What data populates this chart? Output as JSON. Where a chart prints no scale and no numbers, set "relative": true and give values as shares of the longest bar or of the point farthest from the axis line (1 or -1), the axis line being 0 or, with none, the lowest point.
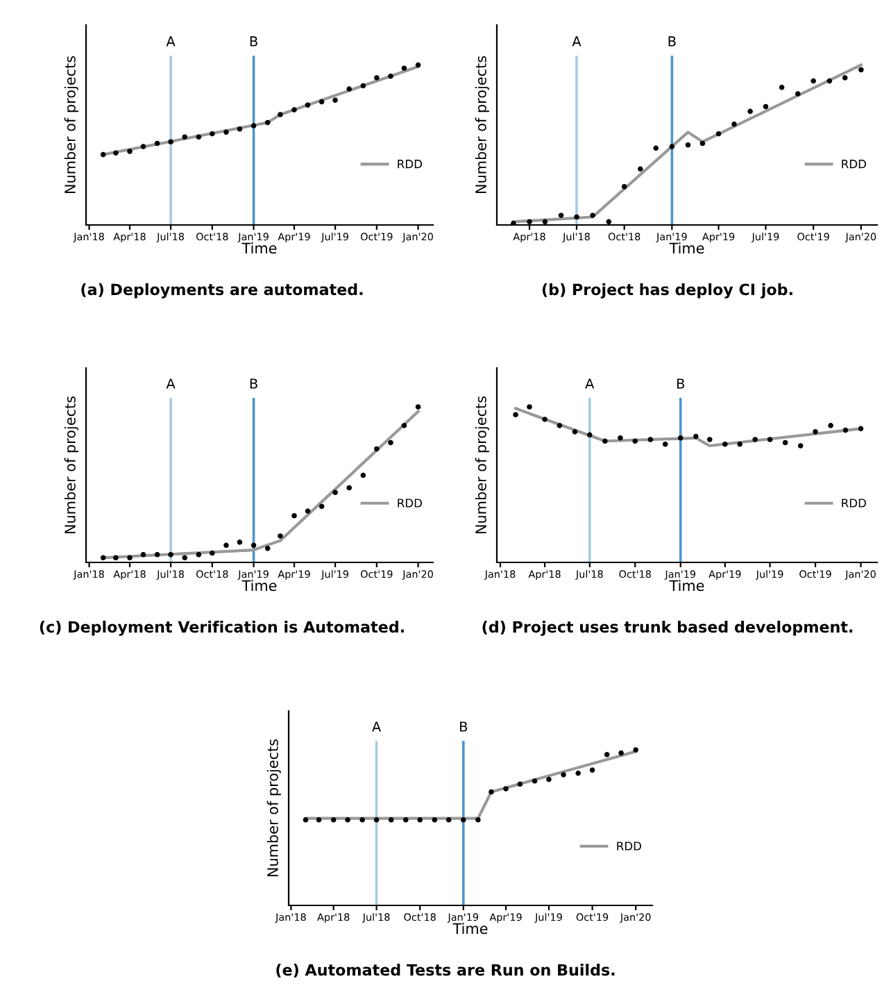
{
  "chart_data": [
    {
      "type": "line",
      "relative": true,
      "xlabel": "Time",
      "ylabel": "Number of projects",
      "tick_labels": "x",
      "legend": "right",
      "annotations": [
        "(a) Deployments are automated."
      ],
      "xlim": [
        "2017-12-25",
        "2020-02-03"
      ],
      "xticks": [
        {
          "value": "2018-01",
          "label": "Jan'18"
        },
        {
          "value": "2018-04",
          "label": "Apr'18"
        },
        {
          "value": "2018-07",
          "label": "Jul'18"
        },
        {
          "value": "2018-10",
          "label": "Oct'18"
        },
        {
          "value": "2019-01",
          "label": "Jan'19"
        },
        {
          "value": "2019-04",
          "label": "Apr'19"
        },
        {
          "value": "2019-07",
          "label": "Jul'19"
        },
        {
          "value": "2019-10",
          "label": "Oct'19"
        },
        {
          "value": "2020-01",
          "label": "Jan'20"
        }
      ],
      "x": [
        "2018-02",
        "2018-03",
        "2018-04",
        "2018-05",
        "2018-06",
        "2018-07",
        "2018-08",
        "2018-09",
        "2018-10",
        "2018-11",
        "2018-12",
        "2019-01",
        "2019-02",
        "2019-03",
        "2019-04",
        "2019-05",
        "2019-06",
        "2019-07",
        "2019-08",
        "2019-09",
        "2019-10",
        "2019-11",
        "2019-12",
        "2020-01"
      ],
      "ref_lines": [
        {
          "axis": "x",
          "value": "2018-07",
          "label": "A",
          "color": "#a6cbe3"
        },
        {
          "axis": "x",
          "value": "2019-01",
          "label": "B",
          "color": "#4f96cc"
        }
      ],
      "series": [
        {
          "type": "scatter",
          "color": "#000000",
          "marker": "circle",
          "values": [
            0.44,
            0.45,
            0.46,
            0.49,
            0.51,
            0.52,
            0.55,
            0.55,
            0.57,
            0.58,
            0.6,
            0.62,
            0.64,
            0.69,
            0.72,
            0.75,
            0.77,
            0.78,
            0.85,
            0.87,
            0.92,
            0.93,
            0.98,
            1.0
          ]
        },
        {
          "type": "line",
          "name": "RDD",
          "color": "#999999",
          "x": [
            "2018-02",
            "2019-02",
            "2019-03",
            "2020-01"
          ],
          "values": [
            0.44,
            0.64,
            0.69,
            0.99
          ]
        }
      ]
    },
    {
      "type": "line",
      "relative": true,
      "xlabel": "Time",
      "ylabel": "Number of projects",
      "tick_labels": "x",
      "legend": "right",
      "annotations": [
        "(b) Project has deploy CI job."
      ],
      "xlim": [
        "2018-01-28",
        "2020-02-01"
      ],
      "xticks": [
        {
          "value": "2018-04",
          "label": "Apr'18"
        },
        {
          "value": "2018-07",
          "label": "Jul'18"
        },
        {
          "value": "2018-10",
          "label": "Oct'18"
        },
        {
          "value": "2019-01",
          "label": "Jan'19"
        },
        {
          "value": "2019-04",
          "label": "Apr'19"
        },
        {
          "value": "2019-07",
          "label": "Jul'19"
        },
        {
          "value": "2019-10",
          "label": "Oct'19"
        },
        {
          "value": "2020-01",
          "label": "Jan'20"
        }
      ],
      "x": [
        "2018-03",
        "2018-04",
        "2018-05",
        "2018-06",
        "2018-07",
        "2018-08",
        "2018-09",
        "2018-10",
        "2018-11",
        "2018-12",
        "2019-01",
        "2019-02",
        "2019-03",
        "2019-04",
        "2019-05",
        "2019-06",
        "2019-07",
        "2019-08",
        "2019-09",
        "2019-10",
        "2019-11",
        "2019-12",
        "2020-01"
      ],
      "ref_lines": [
        {
          "axis": "x",
          "value": "2018-07",
          "label": "A",
          "color": "#a6cbe3"
        },
        {
          "axis": "x",
          "value": "2019-01",
          "label": "B",
          "color": "#4f96cc"
        }
      ],
      "series": [
        {
          "type": "scatter",
          "color": "#000000",
          "marker": "circle",
          "values": [
            0.01,
            0.02,
            0.02,
            0.06,
            0.05,
            0.06,
            0.02,
            0.24,
            0.35,
            0.48,
            0.49,
            0.5,
            0.51,
            0.57,
            0.63,
            0.71,
            0.74,
            0.86,
            0.82,
            0.9,
            0.9,
            0.92,
            0.97
          ]
        },
        {
          "type": "line",
          "name": "RDD",
          "color": "#999999",
          "x": [
            "2018-03",
            "2018-08",
            "2019-02",
            "2019-03",
            "2020-01"
          ],
          "values": [
            0.02,
            0.05,
            0.58,
            0.52,
            1.0
          ]
        }
      ]
    },
    {
      "type": "line",
      "relative": true,
      "xlabel": "Time",
      "ylabel": "Number of projects",
      "tick_labels": "x",
      "legend": "right",
      "annotations": [
        "(c) Deployment Verification is Automated."
      ],
      "xlim": [
        "2017-12-25",
        "2020-02-03"
      ],
      "xticks": [
        {
          "value": "2018-01",
          "label": "Jan'18"
        },
        {
          "value": "2018-04",
          "label": "Apr'18"
        },
        {
          "value": "2018-07",
          "label": "Jul'18"
        },
        {
          "value": "2018-10",
          "label": "Oct'18"
        },
        {
          "value": "2019-01",
          "label": "Jan'19"
        },
        {
          "value": "2019-04",
          "label": "Apr'19"
        },
        {
          "value": "2019-07",
          "label": "Jul'19"
        },
        {
          "value": "2019-10",
          "label": "Oct'19"
        },
        {
          "value": "2020-01",
          "label": "Jan'20"
        }
      ],
      "x": [
        "2018-02",
        "2018-03",
        "2018-04",
        "2018-05",
        "2018-06",
        "2018-07",
        "2018-08",
        "2018-09",
        "2018-10",
        "2018-11",
        "2018-12",
        "2019-01",
        "2019-02",
        "2019-03",
        "2019-04",
        "2019-05",
        "2019-06",
        "2019-07",
        "2019-08",
        "2019-09",
        "2019-10",
        "2019-11",
        "2019-12",
        "2020-01"
      ],
      "ref_lines": [
        {
          "axis": "x",
          "value": "2018-07",
          "label": "A",
          "color": "#a6cbe3"
        },
        {
          "axis": "x",
          "value": "2019-01",
          "label": "B",
          "color": "#4f96cc"
        }
      ],
      "series": [
        {
          "type": "scatter",
          "color": "#000000",
          "marker": "circle",
          "values": [
            0.03,
            0.03,
            0.03,
            0.05,
            0.05,
            0.05,
            0.03,
            0.05,
            0.06,
            0.11,
            0.13,
            0.11,
            0.09,
            0.17,
            0.3,
            0.33,
            0.36,
            0.45,
            0.48,
            0.56,
            0.73,
            0.77,
            0.88,
            1.0
          ]
        },
        {
          "type": "line",
          "name": "RDD",
          "color": "#999999",
          "x": [
            "2018-02",
            "2019-01",
            "2019-03",
            "2020-01"
          ],
          "values": [
            0.03,
            0.08,
            0.14,
            0.97
          ]
        }
      ]
    },
    {
      "type": "line",
      "relative": true,
      "xlabel": "Time",
      "ylabel": "Number of projects",
      "tick_labels": "x",
      "legend": "right",
      "annotations": [
        "(d) Project uses trunk based development."
      ],
      "xlim": [
        "2017-12-25",
        "2020-02-03"
      ],
      "xticks": [
        {
          "value": "2018-01",
          "label": "Jan'18"
        },
        {
          "value": "2018-04",
          "label": "Apr'18"
        },
        {
          "value": "2018-07",
          "label": "Jul'18"
        },
        {
          "value": "2018-10",
          "label": "Oct'18"
        },
        {
          "value": "2019-01",
          "label": "Jan'19"
        },
        {
          "value": "2019-04",
          "label": "Apr'19"
        },
        {
          "value": "2019-07",
          "label": "Jul'19"
        },
        {
          "value": "2019-10",
          "label": "Oct'19"
        },
        {
          "value": "2020-01",
          "label": "Jan'20"
        }
      ],
      "x": [
        "2018-02",
        "2018-03",
        "2018-04",
        "2018-05",
        "2018-06",
        "2018-07",
        "2018-08",
        "2018-09",
        "2018-10",
        "2018-11",
        "2018-12",
        "2019-01",
        "2019-02",
        "2019-03",
        "2019-04",
        "2019-05",
        "2019-06",
        "2019-07",
        "2019-08",
        "2019-09",
        "2019-10",
        "2019-11",
        "2019-12",
        "2020-01"
      ],
      "ref_lines": [
        {
          "axis": "x",
          "value": "2018-07",
          "label": "A",
          "color": "#a6cbe3"
        },
        {
          "axis": "x",
          "value": "2019-01",
          "label": "B",
          "color": "#4f96cc"
        }
      ],
      "series": [
        {
          "type": "scatter",
          "color": "#000000",
          "marker": "circle",
          "values": [
            0.95,
            1.0,
            0.92,
            0.88,
            0.84,
            0.82,
            0.78,
            0.8,
            0.78,
            0.79,
            0.76,
            0.8,
            0.81,
            0.79,
            0.76,
            0.76,
            0.79,
            0.79,
            0.77,
            0.75,
            0.84,
            0.88,
            0.85,
            0.86
          ]
        },
        {
          "type": "line",
          "name": "RDD",
          "color": "#999999",
          "x": [
            "2018-02",
            "2018-08",
            "2019-02",
            "2019-03",
            "2020-01"
          ],
          "values": [
            0.99,
            0.78,
            0.8,
            0.75,
            0.86
          ]
        }
      ]
    },
    {
      "type": "line",
      "relative": true,
      "xlabel": "Time",
      "ylabel": "Number of projects",
      "tick_labels": "x",
      "legend": "right",
      "annotations": [
        "(e) Automated Tests are Run on Builds."
      ],
      "xlim": [
        "2017-12-27",
        "2020-02-05"
      ],
      "xticks": [
        {
          "value": "2018-01",
          "label": "Jan'18"
        },
        {
          "value": "2018-04",
          "label": "Apr'18"
        },
        {
          "value": "2018-07",
          "label": "Jul'18"
        },
        {
          "value": "2018-10",
          "label": "Oct'18"
        },
        {
          "value": "2019-01",
          "label": "Jan'19"
        },
        {
          "value": "2019-04",
          "label": "Apr'19"
        },
        {
          "value": "2019-07",
          "label": "Jul'19"
        },
        {
          "value": "2019-10",
          "label": "Oct'19"
        },
        {
          "value": "2020-01",
          "label": "Jan'20"
        }
      ],
      "x": [
        "2018-02",
        "2018-03",
        "2018-04",
        "2018-05",
        "2018-06",
        "2018-07",
        "2018-08",
        "2018-09",
        "2018-10",
        "2018-11",
        "2018-12",
        "2019-01",
        "2019-02",
        "2019-03",
        "2019-04",
        "2019-05",
        "2019-06",
        "2019-07",
        "2019-08",
        "2019-09",
        "2019-10",
        "2019-11",
        "2019-12",
        "2020-01"
      ],
      "ref_lines": [
        {
          "axis": "x",
          "value": "2018-07",
          "label": "A",
          "color": "#a6cbe3"
        },
        {
          "axis": "x",
          "value": "2019-01",
          "label": "B",
          "color": "#4f96cc"
        }
      ],
      "series": [
        {
          "type": "scatter",
          "color": "#000000",
          "marker": "circle",
          "values": [
            0.55,
            0.55,
            0.55,
            0.55,
            0.55,
            0.55,
            0.55,
            0.55,
            0.55,
            0.55,
            0.55,
            0.55,
            0.55,
            0.73,
            0.75,
            0.78,
            0.8,
            0.81,
            0.84,
            0.85,
            0.87,
            0.97,
            0.98,
            1.0
          ]
        },
        {
          "type": "line",
          "name": "RDD",
          "color": "#999999",
          "x": [
            "2018-02",
            "2019-02",
            "2019-03",
            "2020-01"
          ],
          "values": [
            0.56,
            0.56,
            0.73,
            0.99
          ]
        }
      ]
    }
  ]
}
